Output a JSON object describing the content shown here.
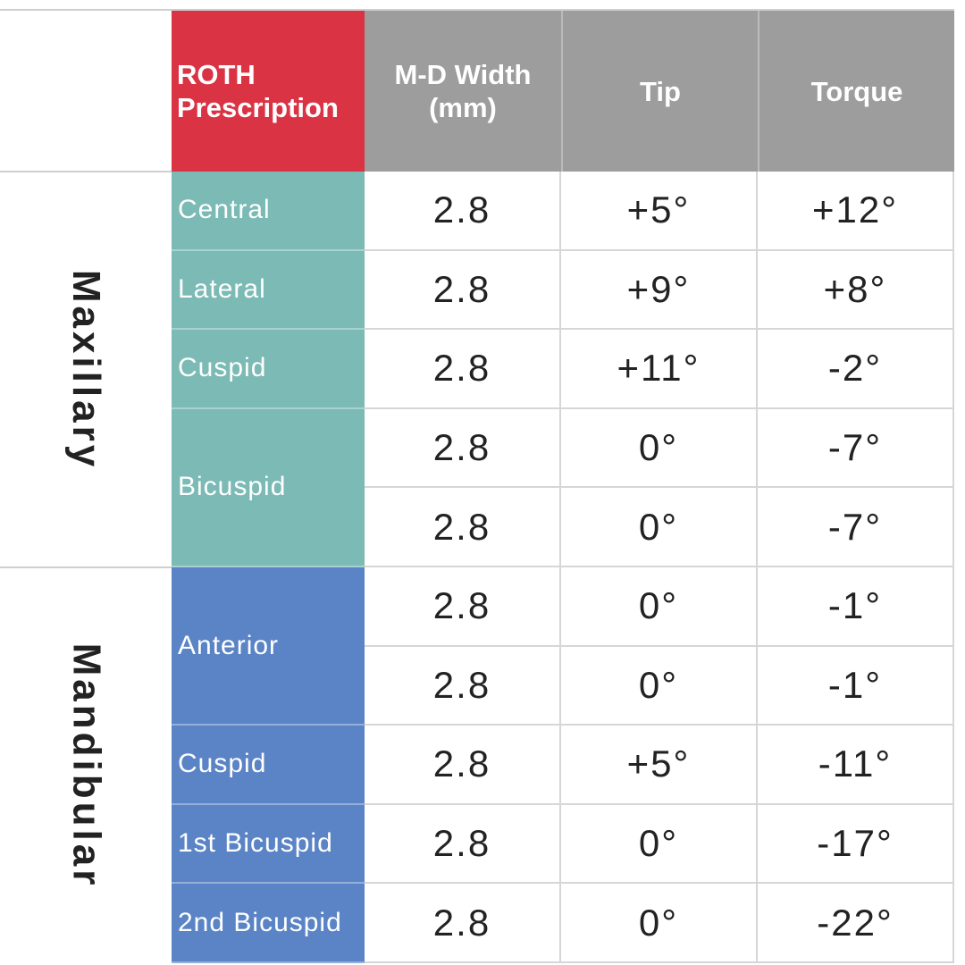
{
  "table": {
    "header": [
      "ROTH Prescription",
      "M-D Width (mm)",
      "Tip",
      "Torque"
    ],
    "groups": [
      {
        "label": "Maxillary",
        "teeth": [
          {
            "name": "Central",
            "rows": [
              [
                "2.8",
                "+5°",
                "+12°"
              ]
            ]
          },
          {
            "name": "Lateral",
            "rows": [
              [
                "2.8",
                "+9°",
                "+8°"
              ]
            ]
          },
          {
            "name": "Cuspid",
            "rows": [
              [
                "2.8",
                "+11°",
                "-2°"
              ]
            ]
          },
          {
            "name": "Bicuspid",
            "rows": [
              [
                "2.8",
                "0°",
                "-7°"
              ],
              [
                "2.8",
                "0°",
                "-7°"
              ]
            ]
          }
        ]
      },
      {
        "label": "Mandibular",
        "teeth": [
          {
            "name": "Anterior",
            "rows": [
              [
                "2.8",
                "0°",
                "-1°"
              ],
              [
                "2.8",
                "0°",
                "-1°"
              ]
            ]
          },
          {
            "name": "Cuspid",
            "rows": [
              [
                "2.8",
                "+5°",
                "-11°"
              ]
            ]
          },
          {
            "name": "1st Bicuspid",
            "rows": [
              [
                "2.8",
                "0°",
                "-17°"
              ]
            ]
          },
          {
            "name": "2nd Bicuspid",
            "rows": [
              [
                "2.8",
                "0°",
                "-22°"
              ]
            ]
          }
        ]
      }
    ]
  }
}
